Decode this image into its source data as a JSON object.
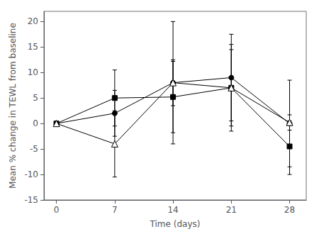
{
  "chart_data": {
    "type": "line",
    "x": [
      0,
      7,
      14,
      21,
      28
    ],
    "series": [
      {
        "values": [
          0,
          2,
          8,
          9,
          0
        ],
        "error_plus": [
          0,
          4.5,
          12,
          8.5,
          8.5
        ],
        "error_minus": [
          0,
          4.5,
          12,
          8.5,
          8.5
        ],
        "color": "#000000",
        "marker": "circle"
      },
      {
        "values": [
          0,
          5,
          5.2,
          7,
          -4.5
        ],
        "error_plus": [
          0,
          5.5,
          7,
          8.5,
          5.0
        ],
        "error_minus": [
          0,
          5.5,
          7,
          8.5,
          5.5
        ],
        "color": "#000000",
        "marker": "square"
      },
      {
        "values": [
          0,
          -4,
          8,
          7,
          0.2
        ],
        "error_plus": [
          0,
          6.5,
          4.5,
          7.5,
          1.5
        ],
        "error_minus": [
          0,
          6.5,
          4.5,
          7.5,
          1.5
        ],
        "color": "#000000",
        "marker": "open_triangle"
      }
    ],
    "xlabel": "Time (days)",
    "ylabel": "Mean % change in TEWL from baseline",
    "xlim": [
      -1.5,
      30
    ],
    "ylim": [
      -15,
      22
    ],
    "xticks": [
      0,
      7,
      14,
      21,
      28
    ],
    "yticks": [
      -15,
      -10,
      -5,
      0,
      5,
      10,
      15,
      20
    ],
    "grid": false
  }
}
